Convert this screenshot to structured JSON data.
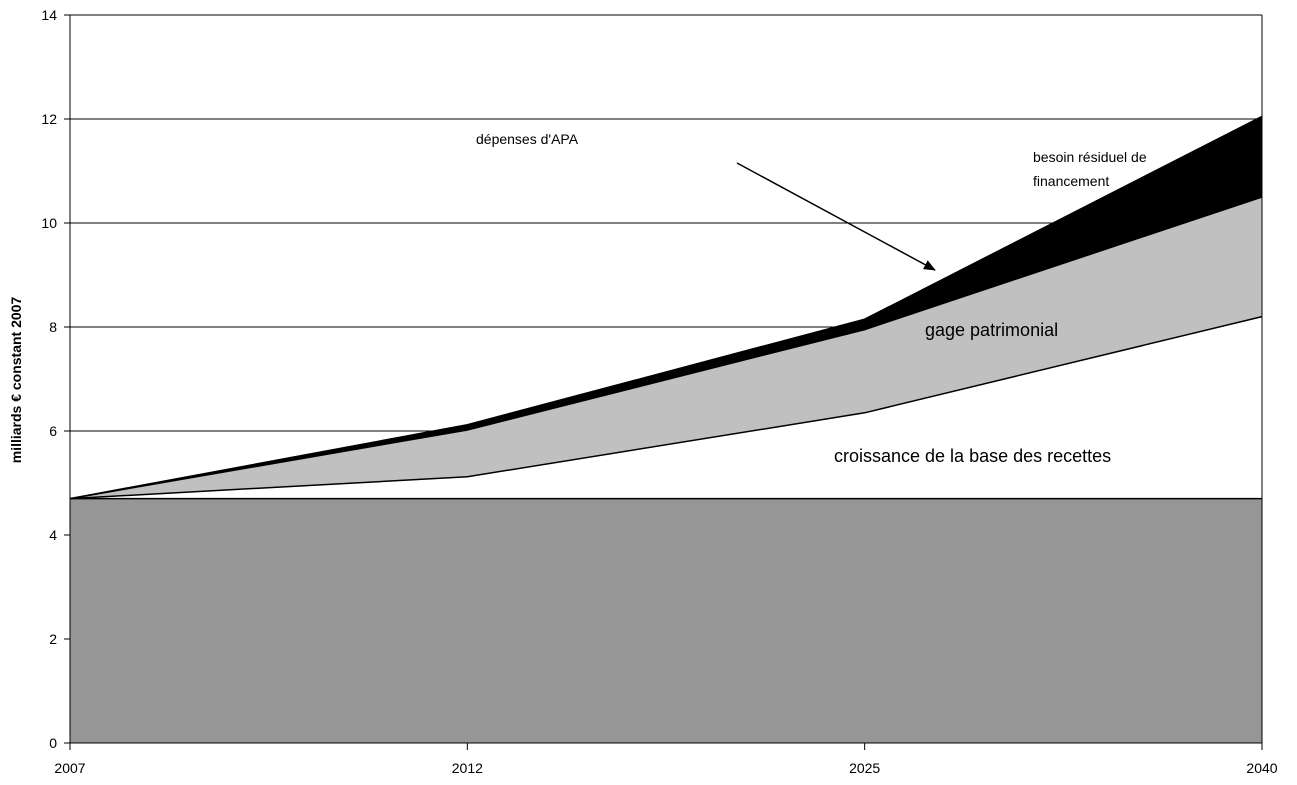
{
  "chart_data": {
    "type": "area",
    "stacked": true,
    "xlabel": "",
    "ylabel": "milliards € constant 2007",
    "categories": [
      "2007",
      "2012",
      "2025",
      "2040"
    ],
    "ylim": [
      0,
      14
    ],
    "yticks": [
      "0",
      "2",
      "4",
      "6",
      "8",
      "10",
      "12",
      "14"
    ],
    "grid": true,
    "series": [
      {
        "values": [
          4.7,
          4.7,
          4.7,
          4.7
        ],
        "color": "#969696"
      },
      {
        "name": "croissance de la base des recettes",
        "values": [
          0,
          0.42,
          1.65,
          3.5
        ],
        "color": "#ffffff"
      },
      {
        "name": "gage patrimonial",
        "values": [
          0,
          0.9,
          1.6,
          2.3
        ],
        "color": "#c0c0c0"
      },
      {
        "name": "besoin résiduel de financement",
        "values": [
          0,
          0.1,
          0.2,
          1.55
        ],
        "color": "#000000"
      }
    ],
    "annotations": {
      "depenses": "dépenses d'APA",
      "besoin_line1": "besoin résiduel de",
      "besoin_line2": "financement",
      "gage": "gage patrimonial",
      "croissance": "croissance de la base des recettes"
    }
  }
}
